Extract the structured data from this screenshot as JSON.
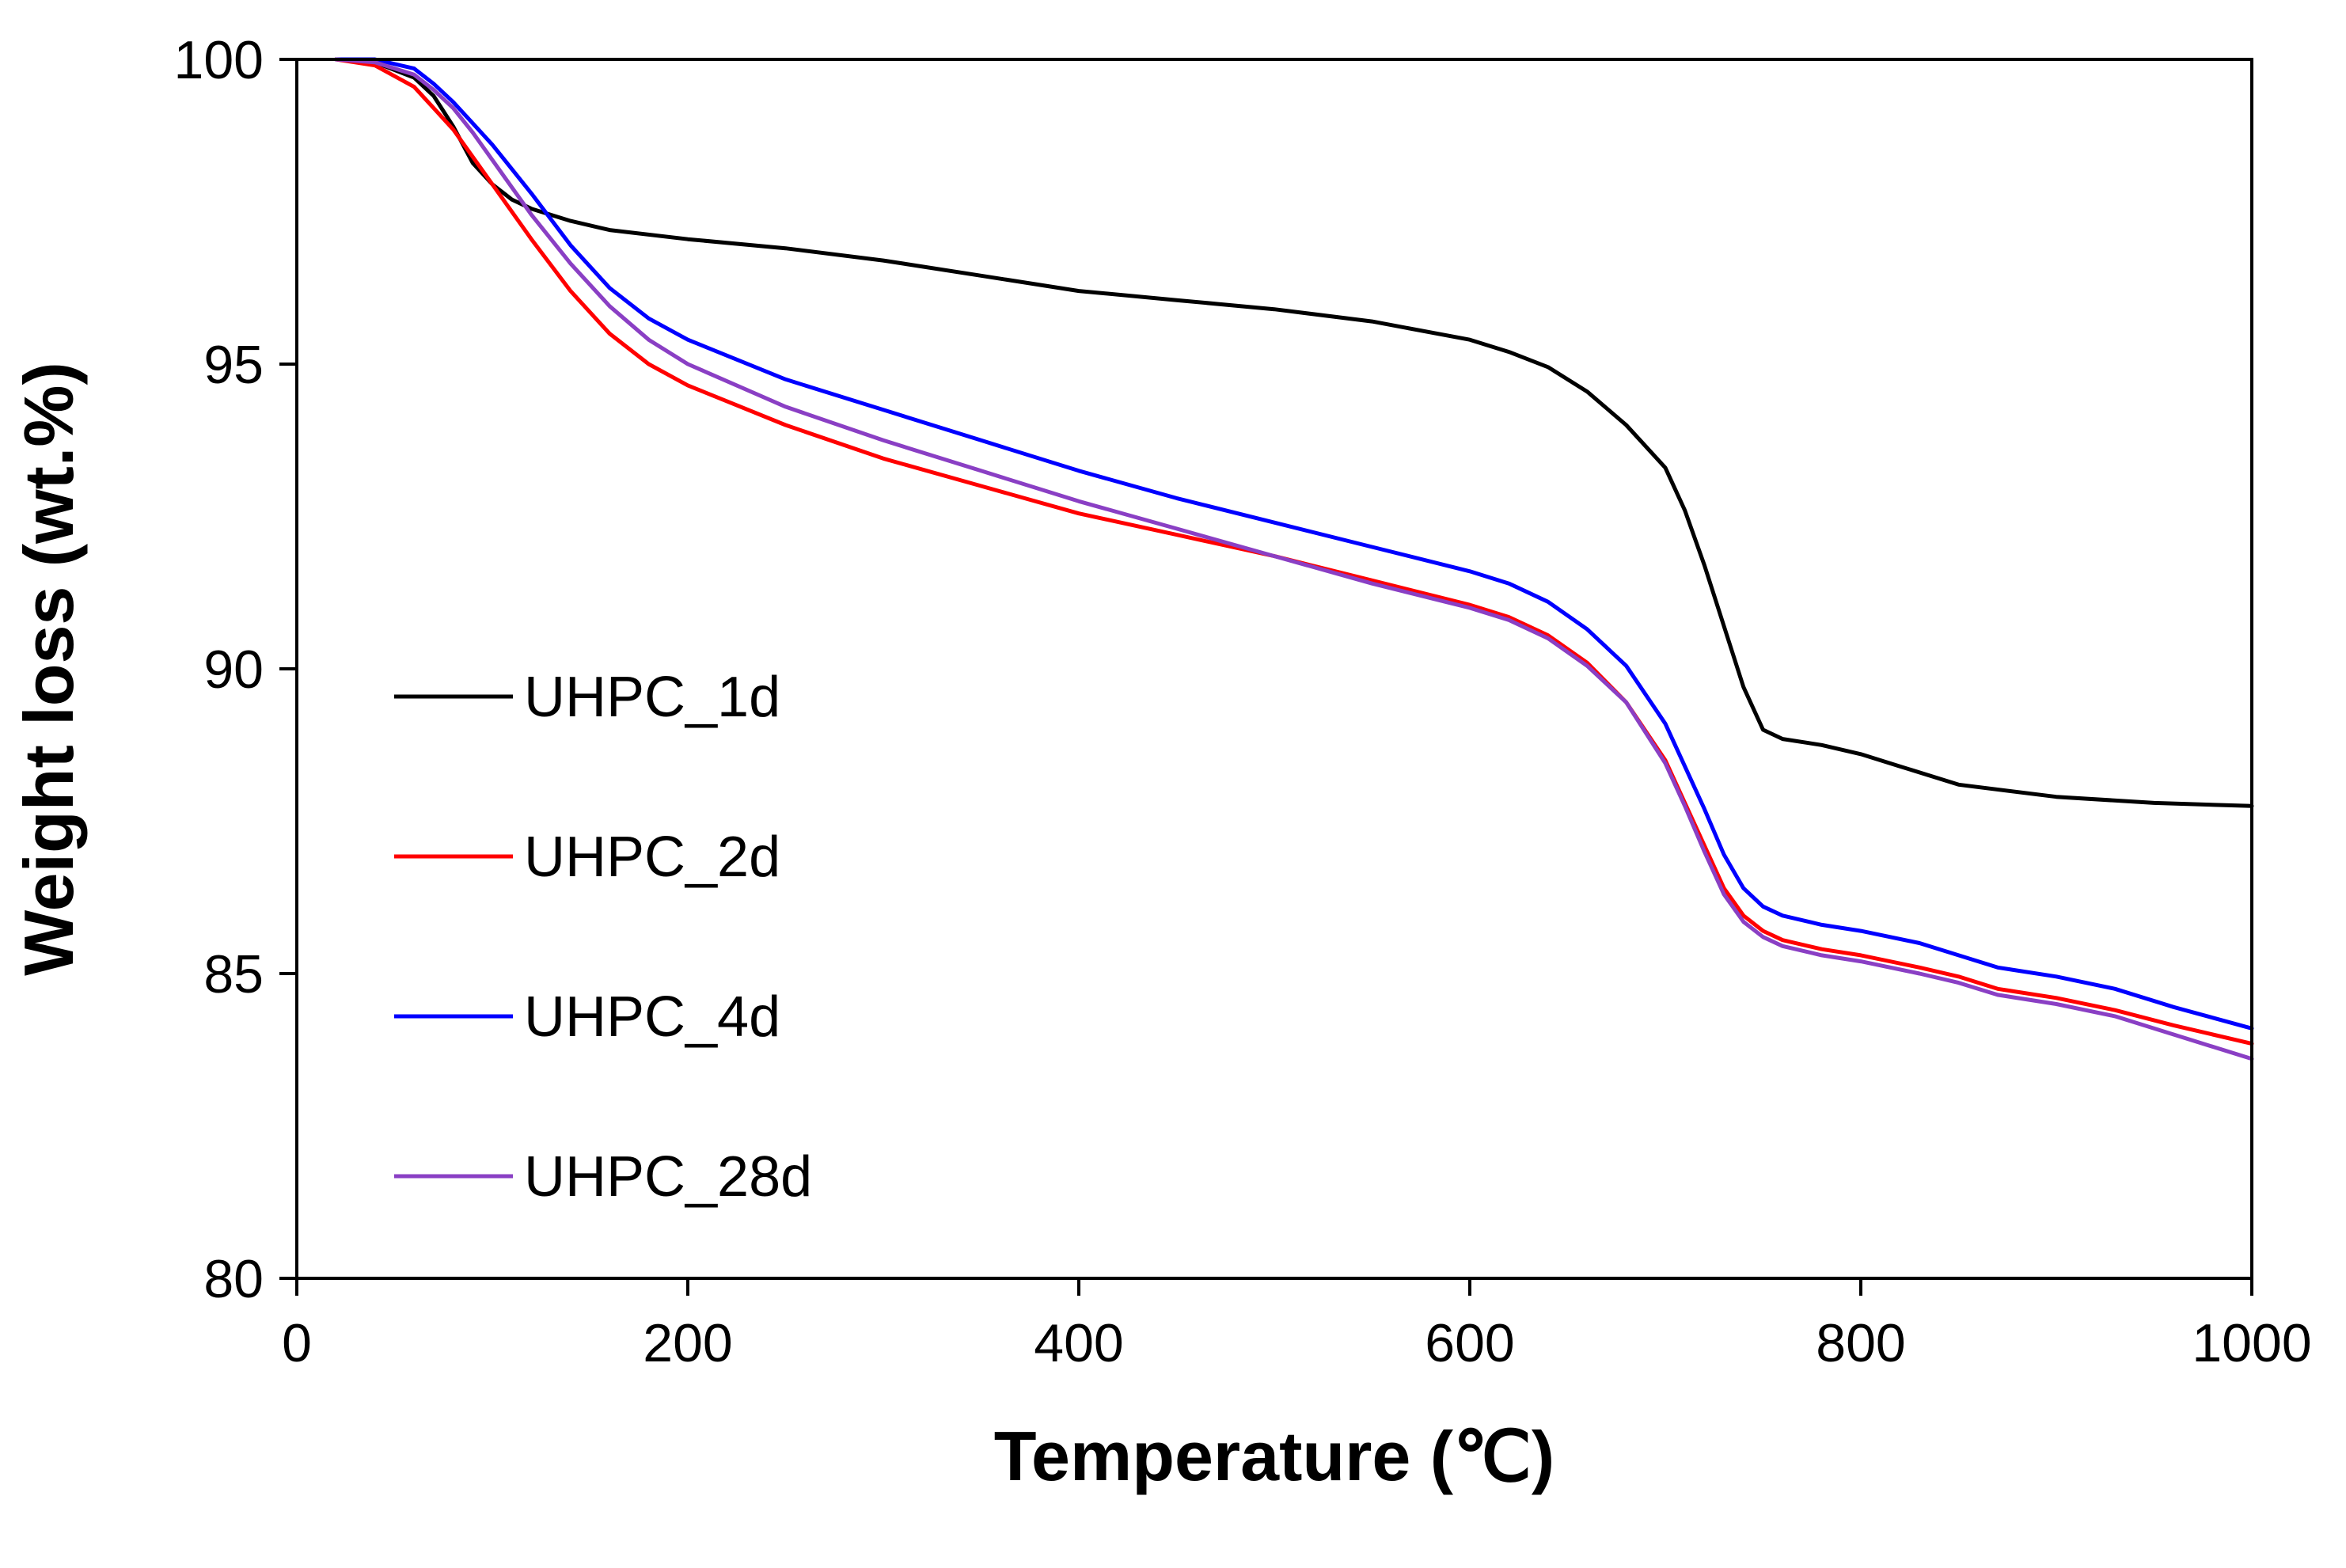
{
  "chart_data": {
    "type": "line",
    "title": "",
    "xlabel": "Temperature (℃)",
    "ylabel": "Weight loss (wt.%)",
    "xlim": [
      0,
      1000
    ],
    "ylim": [
      80,
      100
    ],
    "xticks": [
      0,
      200,
      400,
      600,
      800,
      1000
    ],
    "yticks": [
      80,
      85,
      90,
      95,
      100
    ],
    "grid": false,
    "legend_position": "left",
    "series": [
      {
        "name": "UHPC_1d",
        "color": "#000000",
        "x": [
          20,
          40,
          60,
          70,
          80,
          90,
          100,
          110,
          120,
          140,
          160,
          200,
          250,
          300,
          350,
          400,
          450,
          500,
          550,
          600,
          620,
          640,
          660,
          680,
          700,
          710,
          720,
          730,
          740,
          750,
          760,
          780,
          800,
          820,
          850,
          900,
          950,
          1000
        ],
        "y": [
          100,
          99.95,
          99.7,
          99.4,
          98.9,
          98.3,
          97.95,
          97.7,
          97.55,
          97.35,
          97.2,
          97.05,
          96.9,
          96.7,
          96.45,
          96.2,
          96.05,
          95.9,
          95.7,
          95.4,
          95.2,
          94.95,
          94.55,
          94.0,
          93.3,
          92.6,
          91.7,
          90.7,
          89.7,
          89.0,
          88.85,
          88.75,
          88.6,
          88.4,
          88.1,
          87.9,
          87.8,
          87.75
        ]
      },
      {
        "name": "UHPC_2d",
        "color": "#ff0000",
        "x": [
          20,
          40,
          60,
          70,
          80,
          90,
          100,
          120,
          140,
          160,
          180,
          200,
          250,
          300,
          350,
          400,
          450,
          500,
          550,
          600,
          620,
          640,
          660,
          680,
          700,
          710,
          720,
          730,
          740,
          750,
          760,
          780,
          800,
          830,
          850,
          870,
          900,
          930,
          960,
          1000
        ],
        "y": [
          100,
          99.9,
          99.55,
          99.2,
          98.85,
          98.4,
          97.95,
          97.05,
          96.2,
          95.5,
          95.0,
          94.65,
          94.0,
          93.45,
          93.0,
          92.55,
          92.2,
          91.85,
          91.45,
          91.05,
          90.85,
          90.55,
          90.1,
          89.45,
          88.5,
          87.8,
          87.1,
          86.4,
          85.95,
          85.7,
          85.55,
          85.4,
          85.3,
          85.1,
          84.95,
          84.75,
          84.6,
          84.4,
          84.15,
          83.85
        ]
      },
      {
        "name": "UHPC_4d",
        "color": "#0000ff",
        "x": [
          20,
          40,
          60,
          70,
          80,
          90,
          100,
          120,
          140,
          160,
          180,
          200,
          250,
          300,
          350,
          400,
          450,
          500,
          550,
          600,
          620,
          640,
          660,
          680,
          700,
          710,
          720,
          730,
          740,
          750,
          760,
          780,
          800,
          830,
          850,
          870,
          900,
          930,
          960,
          1000
        ],
        "y": [
          100,
          100,
          99.85,
          99.6,
          99.3,
          98.95,
          98.6,
          97.8,
          96.95,
          96.25,
          95.75,
          95.4,
          94.75,
          94.25,
          93.75,
          93.25,
          92.8,
          92.4,
          92.0,
          91.6,
          91.4,
          91.1,
          90.65,
          90.05,
          89.1,
          88.4,
          87.7,
          86.95,
          86.4,
          86.1,
          85.95,
          85.8,
          85.7,
          85.5,
          85.3,
          85.1,
          84.95,
          84.75,
          84.45,
          84.1
        ]
      },
      {
        "name": "UHPC_28d",
        "color": "#8a3fc4",
        "x": [
          20,
          40,
          60,
          70,
          80,
          90,
          100,
          120,
          140,
          160,
          180,
          200,
          250,
          300,
          350,
          400,
          450,
          500,
          550,
          600,
          620,
          640,
          660,
          680,
          700,
          710,
          720,
          730,
          740,
          750,
          760,
          780,
          800,
          830,
          850,
          870,
          900,
          930,
          960,
          1000
        ],
        "y": [
          100,
          99.95,
          99.75,
          99.5,
          99.2,
          98.8,
          98.35,
          97.45,
          96.65,
          95.95,
          95.4,
          95.0,
          94.3,
          93.75,
          93.25,
          92.75,
          92.3,
          91.85,
          91.4,
          91.0,
          90.8,
          90.5,
          90.05,
          89.45,
          88.45,
          87.75,
          87.0,
          86.3,
          85.85,
          85.6,
          85.45,
          85.3,
          85.2,
          85.0,
          84.85,
          84.65,
          84.5,
          84.3,
          84.0,
          83.6
        ]
      }
    ]
  }
}
